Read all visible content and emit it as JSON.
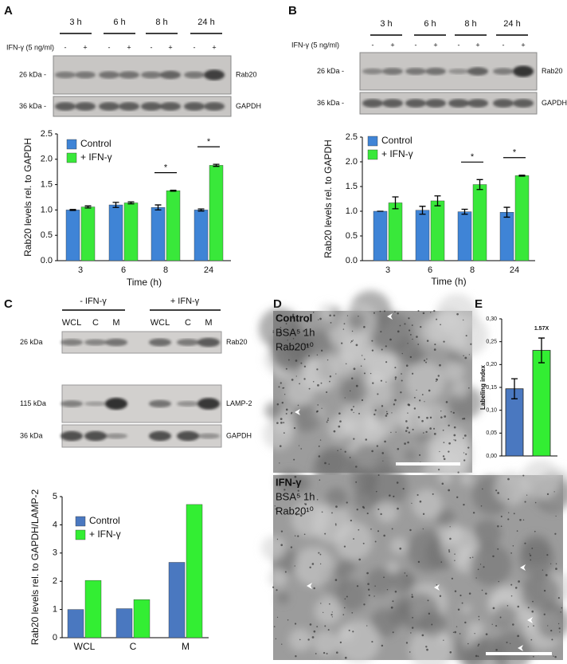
{
  "chart_data": [
    {
      "type": "bar",
      "categories": [
        3,
        6,
        8,
        24
      ],
      "x_label": "Time (h)",
      "y_label": "Rab20 levels rel. to GAPDH",
      "series": [
        {
          "name": "Control",
          "color": "#3f84d6",
          "values": [
            1.0,
            1.1,
            1.05,
            1.0
          ],
          "errors": [
            0.01,
            0.05,
            0.05,
            0.02
          ]
        },
        {
          "name": "+ IFN-γ",
          "color": "#39e83a",
          "values": [
            1.06,
            1.14,
            1.38,
            1.88
          ],
          "errors": [
            0.02,
            0.02,
            0.01,
            0.02
          ]
        }
      ],
      "significance": [
        null,
        null,
        "*",
        "*"
      ],
      "ylim": [
        0,
        2.5
      ],
      "yticks": [
        {
          "value": 0,
          "label": "0.0"
        },
        0.5,
        {
          "value": 1,
          "label": "1.0"
        },
        1.5,
        {
          "value": 2,
          "label": "2.0"
        },
        2.5
      ]
    },
    {
      "type": "bar",
      "categories": [
        3,
        6,
        8,
        24
      ],
      "x_label": "Time (h)",
      "y_label": "Rab20 levels rel. to GAPDH",
      "series": [
        {
          "name": "Control",
          "color": "#3f84d6",
          "values": [
            1.0,
            1.02,
            0.99,
            0.98
          ],
          "errors": [
            0.0,
            0.08,
            0.05,
            0.1
          ]
        },
        {
          "name": "+ IFN-γ",
          "color": "#39e83a",
          "values": [
            1.17,
            1.21,
            1.54,
            1.72
          ],
          "errors": [
            0.12,
            0.1,
            0.1,
            0.01
          ]
        }
      ],
      "significance": [
        null,
        null,
        "*",
        "*"
      ],
      "ylim": [
        0,
        2.5
      ],
      "yticks": [
        {
          "value": 0,
          "label": "0.0"
        },
        0.5,
        {
          "value": 1,
          "label": "1.0"
        },
        1.5,
        {
          "value": 2,
          "label": "2.0"
        },
        2.5
      ]
    },
    {
      "type": "bar",
      "categories": [
        "WCL",
        "C",
        "M"
      ],
      "y_label": "Rab20 levels rel. to GAPDH/LAMP-2",
      "series": [
        {
          "name": "Control",
          "color": "#4a78c0",
          "values": [
            1.0,
            1.03,
            2.67
          ]
        },
        {
          "name": "+ IFN-γ",
          "color": "#33ee33",
          "values": [
            2.03,
            1.35,
            4.72
          ]
        }
      ],
      "ylim": [
        0,
        5
      ],
      "yticks": [
        0,
        1,
        2,
        3,
        4,
        5
      ]
    },
    {
      "type": "bar",
      "categories": [
        null,
        null
      ],
      "y_label": "Labeling index",
      "values": [
        0.147,
        0.231
      ],
      "errors": [
        0.022,
        0.027
      ],
      "colors": [
        "#4a78c0",
        "#33ee33"
      ],
      "annotation": "1.57X",
      "ylim": [
        0,
        0.3
      ],
      "yticks": [
        {
          "value": 0,
          "label": "0,00"
        },
        {
          "value": 0.05,
          "label": "0,05"
        },
        {
          "value": 0.1,
          "label": "0,10"
        },
        {
          "value": 0.15,
          "label": "0,15"
        },
        {
          "value": 0.2,
          "label": "0,20"
        },
        {
          "value": 0.25,
          "label": "0,25"
        },
        {
          "value": 0.3,
          "label": "0,30"
        }
      ]
    }
  ],
  "panel_a": {
    "letter": "A",
    "times": [
      "3 h",
      "6 h",
      "8 h",
      "24 h"
    ],
    "treatment": "IFN-γ (5 ng/ml)",
    "signs": [
      "-",
      "+",
      "-",
      "+",
      "-",
      "+",
      "-",
      "+"
    ],
    "blots": [
      {
        "marker": "26 kDa -",
        "protein": "Rab20"
      },
      {
        "marker": "36 kDa -",
        "protein": "GAPDH"
      }
    ]
  },
  "panel_b": {
    "letter": "B",
    "times": [
      "3 h",
      "6 h",
      "8 h",
      "24 h"
    ],
    "treatment": "IFN-γ (5 ng/ml)",
    "signs": [
      "-",
      "+",
      "-",
      "+",
      "-",
      "+",
      "-",
      "+"
    ],
    "blots": [
      {
        "marker": "26 kDa -",
        "protein": "Rab20"
      },
      {
        "marker": "36 kDa -",
        "protein": "GAPDH"
      }
    ]
  },
  "panel_c": {
    "letter": "C",
    "groups": [
      "- IFN-γ",
      "+ IFN-γ"
    ],
    "lanes": [
      "WCL",
      "C",
      "M",
      "WCL",
      "C",
      "M"
    ],
    "blots": [
      {
        "marker": "26 kDa",
        "protein": "Rab20"
      },
      {
        "marker": "115 kDa",
        "protein": "LAMP-2"
      },
      {
        "marker": "36 kDa",
        "protein": "GAPDH"
      }
    ]
  },
  "panel_d": {
    "letter": "D",
    "images": [
      {
        "labels": [
          "Control",
          "BSA⁵ 1h",
          "Rab20¹⁰"
        ]
      },
      {
        "labels": [
          "IFN-γ",
          "BSA⁵ 1h",
          "Rab20¹⁰"
        ]
      }
    ]
  },
  "panel_e": {
    "letter": "E"
  }
}
